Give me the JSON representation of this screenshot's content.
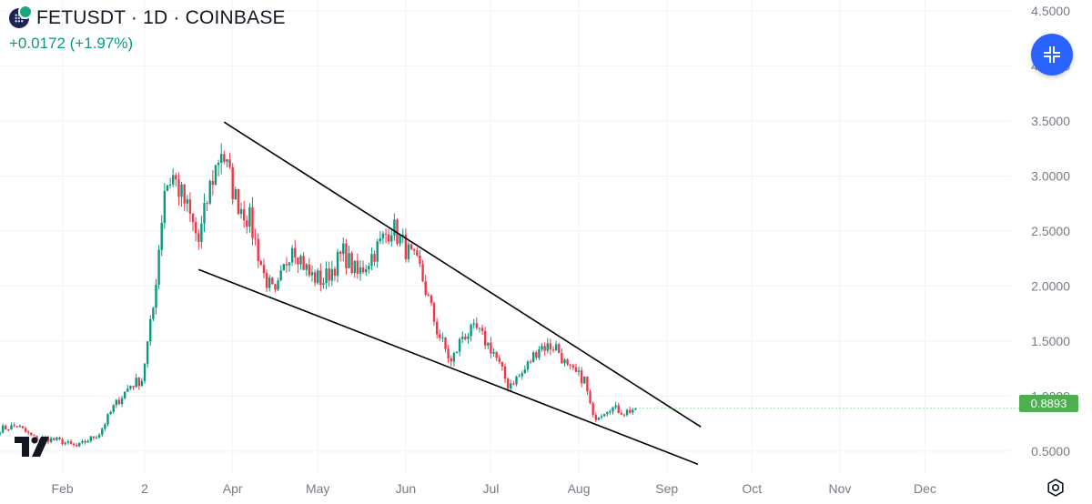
{
  "header": {
    "title": "FETUSDT · 1D · COINBASE",
    "change": "+0.0172 (+1.97%)"
  },
  "colors": {
    "up": "#089981",
    "down": "#f23645",
    "grid": "#f0f3fa",
    "axis_text": "#787b86",
    "accent": "#2962ff",
    "price_tag": "#4caf50",
    "trendline": "#000000"
  },
  "icons": {
    "symbol": "fet-logo-icon",
    "collapse": "collapse-arrows-icon",
    "logo": "tradingview-logo-icon",
    "settings": "settings-gear-icon"
  },
  "current_price_label": "0.8893",
  "chart_data": {
    "type": "candlestick",
    "title": "FETUSDT · 1D · COINBASE",
    "x_ticks": [
      "Feb",
      "2",
      "Apr",
      "May",
      "Jun",
      "Jul",
      "Aug",
      "Sep",
      "Oct",
      "Nov",
      "Dec"
    ],
    "y_ticks": [
      "0.5000",
      "1.0000",
      "1.5000",
      "2.0000",
      "2.5000",
      "3.0000",
      "3.5000",
      "4.0000",
      "4.5000"
    ],
    "ylim": [
      0.3,
      4.6
    ],
    "x_range": [
      "2024-01-10",
      "2024-12-31"
    ],
    "last_price": 0.8893,
    "grid": true,
    "waypoints": [
      [
        "2024-01-10",
        0.7
      ],
      [
        "2024-01-16",
        0.73
      ],
      [
        "2024-01-22",
        0.62
      ],
      [
        "2024-01-30",
        0.6
      ],
      [
        "2024-02-06",
        0.54
      ],
      [
        "2024-02-14",
        0.66
      ],
      [
        "2024-02-19",
        0.9
      ],
      [
        "2024-02-25",
        1.1
      ],
      [
        "2024-02-29",
        1.15
      ],
      [
        "2024-03-04",
        1.8
      ],
      [
        "2024-03-08",
        2.9
      ],
      [
        "2024-03-11",
        3.0
      ],
      [
        "2024-03-16",
        2.7
      ],
      [
        "2024-03-20",
        2.4
      ],
      [
        "2024-03-24",
        2.9
      ],
      [
        "2024-03-28",
        3.25
      ],
      [
        "2024-04-02",
        2.8
      ],
      [
        "2024-04-07",
        2.6
      ],
      [
        "2024-04-12",
        2.1
      ],
      [
        "2024-04-16",
        1.9
      ],
      [
        "2024-04-22",
        2.4
      ],
      [
        "2024-04-28",
        2.1
      ],
      [
        "2024-05-03",
        2.05
      ],
      [
        "2024-05-10",
        2.3
      ],
      [
        "2024-05-15",
        2.1
      ],
      [
        "2024-05-22",
        2.35
      ],
      [
        "2024-05-27",
        2.55
      ],
      [
        "2024-06-02",
        2.3
      ],
      [
        "2024-06-06",
        2.15
      ],
      [
        "2024-06-12",
        1.6
      ],
      [
        "2024-06-17",
        1.3
      ],
      [
        "2024-06-21",
        1.55
      ],
      [
        "2024-06-26",
        1.6
      ],
      [
        "2024-07-02",
        1.4
      ],
      [
        "2024-07-07",
        1.1
      ],
      [
        "2024-07-12",
        1.2
      ],
      [
        "2024-07-18",
        1.45
      ],
      [
        "2024-07-24",
        1.45
      ],
      [
        "2024-07-28",
        1.25
      ],
      [
        "2024-08-03",
        1.15
      ],
      [
        "2024-08-06",
        0.8
      ],
      [
        "2024-08-12",
        0.9
      ],
      [
        "2024-08-17",
        0.85
      ],
      [
        "2024-08-21",
        0.89
      ]
    ],
    "trendlines": [
      {
        "name": "upper",
        "start": [
          "2024-03-29",
          3.49
        ],
        "end": [
          "2024-09-13",
          0.72
        ]
      },
      {
        "name": "lower",
        "start": [
          "2024-03-20",
          2.15
        ],
        "end": [
          "2024-09-12",
          0.38
        ]
      }
    ]
  }
}
